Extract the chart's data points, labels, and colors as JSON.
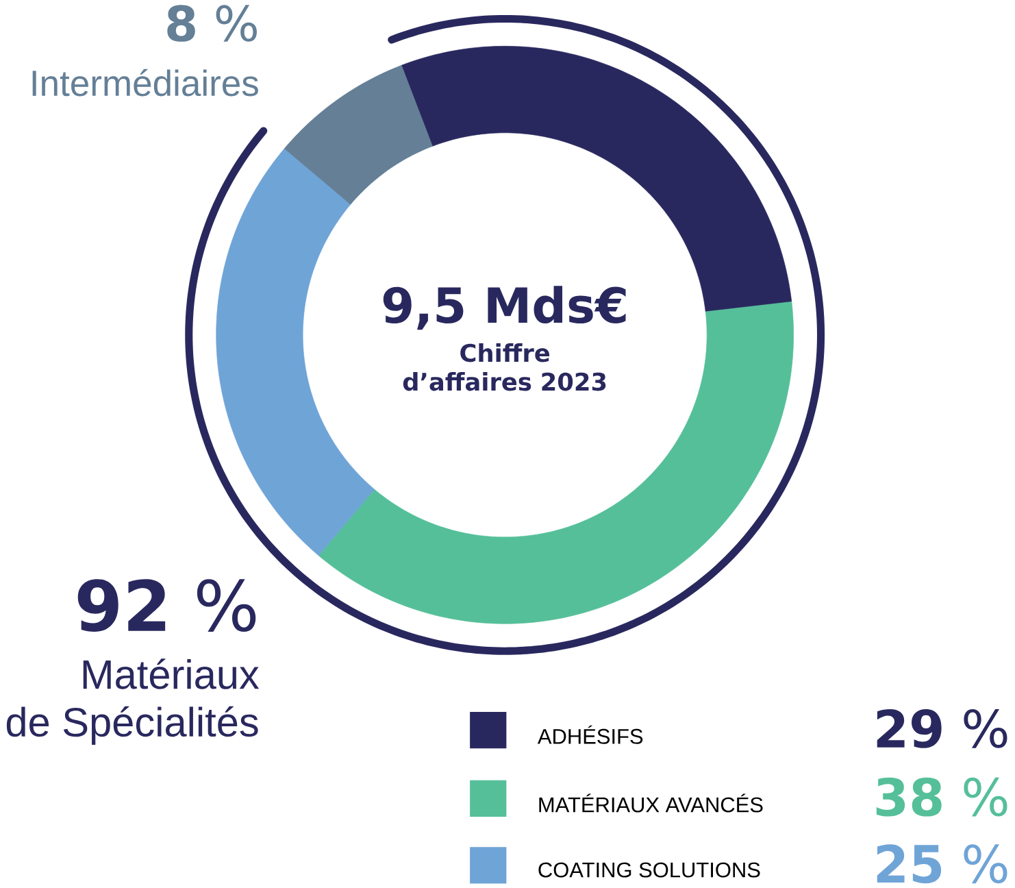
{
  "chart_data": {
    "type": "donut",
    "title": "9,5 Mds€",
    "subtitle": "Chiffre d’affaires 2023",
    "categories": [
      "ADHÉSIFS",
      "MATÉRIAUX AVANCÉS",
      "COATING SOLUTIONS",
      "Intermédiaires"
    ],
    "values": [
      29,
      38,
      25,
      8
    ],
    "colors": [
      "#29285e",
      "#55bf9a",
      "#6fa4d7",
      "#647f96"
    ],
    "value_labels": [
      "**29** %",
      "**38** %",
      "**25** %",
      "**8** %"
    ],
    "annotations": [
      "**92** %",
      "Matériaux",
      "de Spécialités"
    ],
    "legend": "bottom right"
  }
}
